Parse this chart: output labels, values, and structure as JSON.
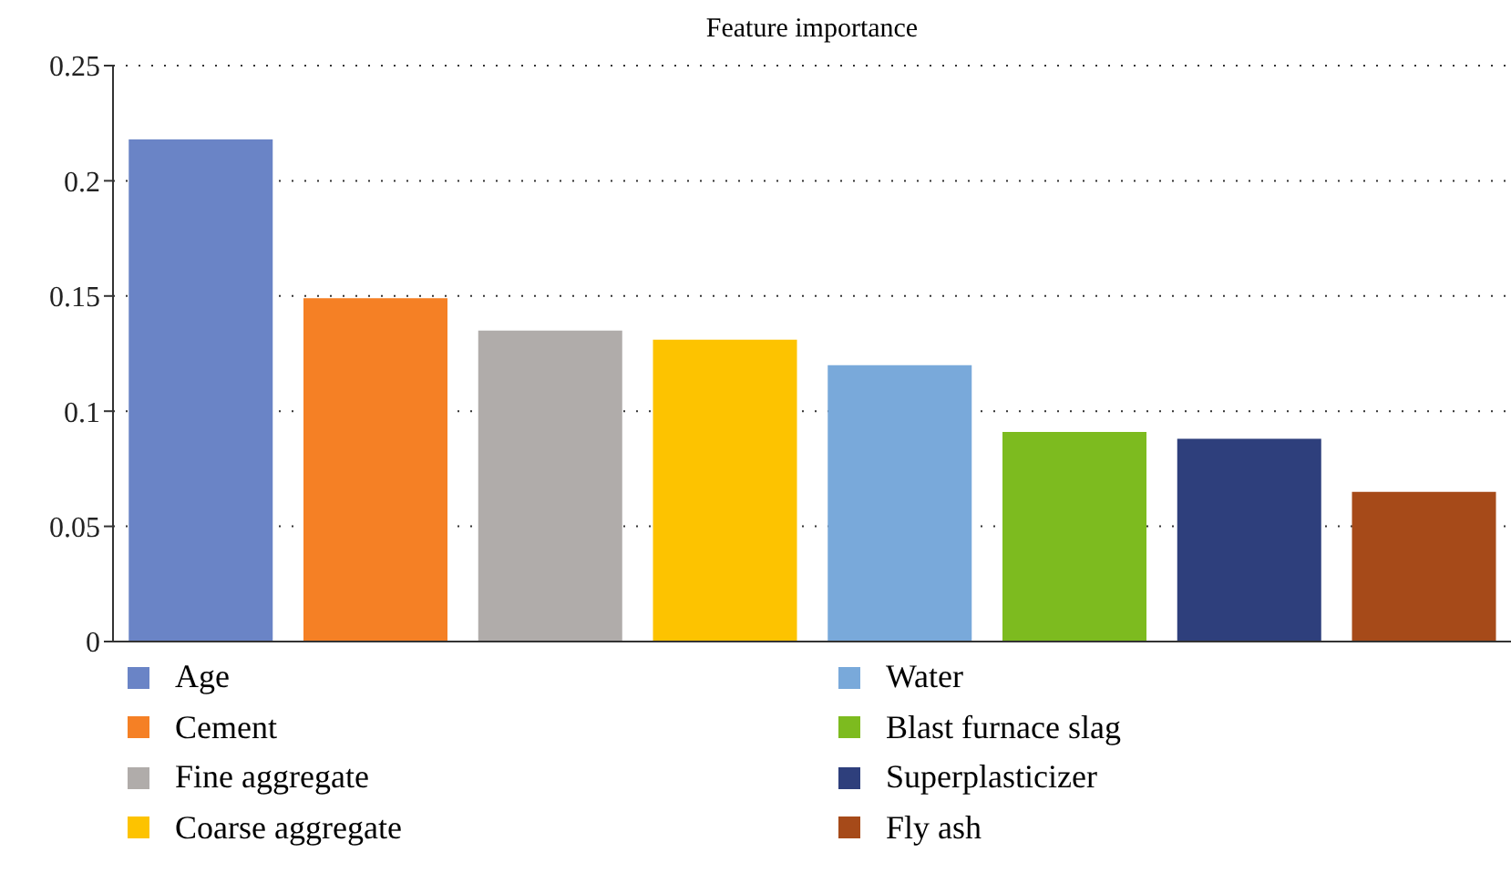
{
  "chart_data": {
    "type": "bar",
    "title": "Feature importance",
    "categories": [
      null,
      null,
      null,
      null,
      null,
      null,
      null,
      null
    ],
    "series": [
      {
        "name": "Age",
        "color": "#6a84c6",
        "values": [
          0.218,
          null,
          null,
          null,
          null,
          null,
          null,
          null
        ]
      },
      {
        "name": "Cement",
        "color": "#f58025",
        "values": [
          null,
          0.149,
          null,
          null,
          null,
          null,
          null,
          null
        ]
      },
      {
        "name": "Fine aggregate",
        "color": "#b0acaa",
        "values": [
          null,
          null,
          0.135,
          null,
          null,
          null,
          null,
          null
        ]
      },
      {
        "name": "Coarse aggregate",
        "color": "#fdc300",
        "values": [
          null,
          null,
          null,
          0.131,
          null,
          null,
          null,
          null
        ]
      },
      {
        "name": "Water",
        "color": "#79a9da",
        "values": [
          null,
          null,
          null,
          null,
          0.12,
          null,
          null,
          null
        ]
      },
      {
        "name": "Blast furnace slag",
        "color": "#7dbb1f",
        "values": [
          null,
          null,
          null,
          null,
          null,
          0.091,
          null,
          null
        ]
      },
      {
        "name": "Superplasticizer",
        "color": "#2e3f7c",
        "values": [
          null,
          null,
          null,
          null,
          null,
          null,
          0.088,
          null
        ]
      },
      {
        "name": "Fly ash",
        "color": "#a64a19",
        "values": [
          null,
          null,
          null,
          null,
          null,
          null,
          null,
          0.065
        ]
      }
    ],
    "stacked": true,
    "ylim": [
      0,
      0.25
    ],
    "yticks": [
      0,
      0.05,
      0.1,
      0.15,
      0.2,
      0.25
    ],
    "grid": "y",
    "legend": "bottom",
    "tick_labels": "y"
  }
}
